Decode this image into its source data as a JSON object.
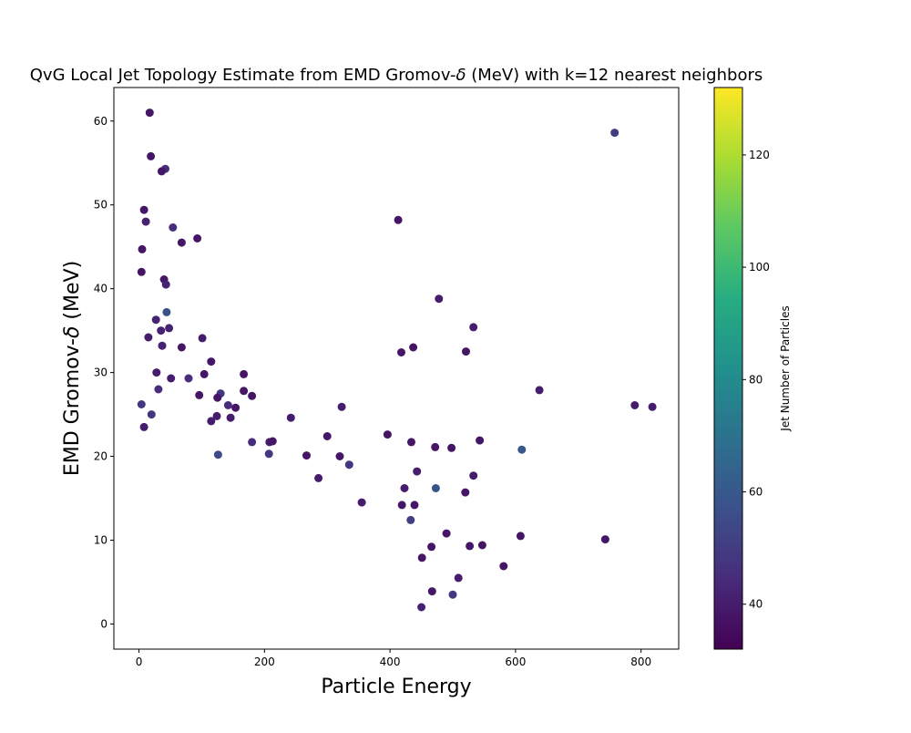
{
  "chart_data": {
    "type": "scatter",
    "title": "QvG Local Jet Topology Estimate from EMD Gromov-",
    "title_symbol": "δ",
    "title_tail": " (MeV) with k=12 nearest neighbors",
    "xlabel": "Particle Energy",
    "ylabel": "EMD Gromov-",
    "ylabel_symbol": "δ",
    "ylabel_tail": " (MeV)",
    "colorbar_label": "Jet Number of Particles",
    "xlim": [
      -40,
      860
    ],
    "ylim": [
      -3,
      64
    ],
    "xticks": [
      0,
      200,
      400,
      600,
      800
    ],
    "yticks": [
      0,
      10,
      20,
      30,
      40,
      50,
      60
    ],
    "cticks": [
      40,
      60,
      80,
      100,
      120
    ],
    "clim": [
      32,
      132
    ],
    "colormap": "viridis",
    "grid": false,
    "point_color_by": "Jet Number of Particles",
    "points": [
      [
        17,
        61.0,
        38
      ],
      [
        758,
        58.6,
        50
      ],
      [
        19,
        55.8,
        38
      ],
      [
        42,
        54.3,
        45
      ],
      [
        36,
        54.0,
        38
      ],
      [
        8,
        49.4,
        38
      ],
      [
        11,
        48.0,
        42
      ],
      [
        413,
        48.2,
        38
      ],
      [
        54,
        47.3,
        45
      ],
      [
        93,
        46.0,
        38
      ],
      [
        68,
        45.5,
        38
      ],
      [
        5,
        44.7,
        38
      ],
      [
        4,
        42.0,
        38
      ],
      [
        40,
        41.1,
        38
      ],
      [
        43,
        40.5,
        42
      ],
      [
        478,
        38.8,
        40
      ],
      [
        44,
        37.2,
        58
      ],
      [
        533,
        35.4,
        40
      ],
      [
        48,
        35.3,
        42
      ],
      [
        15,
        34.2,
        40
      ],
      [
        101,
        34.1,
        40
      ],
      [
        437,
        33.0,
        38
      ],
      [
        418,
        32.4,
        38
      ],
      [
        521,
        32.5,
        38
      ],
      [
        68,
        33.0,
        38
      ],
      [
        37,
        33.2,
        42
      ],
      [
        115,
        31.3,
        38
      ],
      [
        638,
        27.9,
        40
      ],
      [
        790,
        26.1,
        40
      ],
      [
        818,
        25.9,
        40
      ],
      [
        323,
        25.9,
        40
      ],
      [
        242,
        24.6,
        40
      ],
      [
        396,
        22.6,
        38
      ],
      [
        300,
        22.4,
        38
      ],
      [
        434,
        21.7,
        38
      ],
      [
        543,
        21.9,
        38
      ],
      [
        610,
        20.8,
        60
      ],
      [
        472,
        21.1,
        38
      ],
      [
        498,
        21.0,
        38
      ],
      [
        267,
        20.1,
        38
      ],
      [
        320,
        20.0,
        38
      ],
      [
        335,
        19.0,
        48
      ],
      [
        443,
        18.2,
        40
      ],
      [
        533,
        17.7,
        40
      ],
      [
        286,
        17.4,
        40
      ],
      [
        473,
        16.2,
        58
      ],
      [
        520,
        15.7,
        38
      ],
      [
        423,
        16.2,
        40
      ],
      [
        355,
        14.5,
        40
      ],
      [
        419,
        14.2,
        38
      ],
      [
        439,
        14.2,
        38
      ],
      [
        608,
        10.5,
        38
      ],
      [
        743,
        10.1,
        38
      ],
      [
        547,
        9.4,
        38
      ],
      [
        527,
        9.3,
        38
      ],
      [
        581,
        6.9,
        38
      ],
      [
        490,
        10.8,
        38
      ],
      [
        466,
        9.2,
        38
      ],
      [
        433,
        12.4,
        50
      ],
      [
        451,
        7.9,
        38
      ],
      [
        509,
        5.5,
        40
      ],
      [
        467,
        3.9,
        38
      ],
      [
        500,
        3.5,
        48
      ],
      [
        450,
        2.0,
        42
      ],
      [
        180,
        21.7,
        45
      ],
      [
        208,
        21.7,
        40
      ],
      [
        213,
        21.8,
        38
      ],
      [
        207,
        20.3,
        48
      ],
      [
        126,
        20.2,
        55
      ],
      [
        130,
        27.5,
        48
      ],
      [
        167,
        29.8,
        38
      ],
      [
        154,
        25.8,
        38
      ],
      [
        180,
        27.2,
        38
      ],
      [
        167,
        27.8,
        38
      ],
      [
        96,
        27.3,
        38
      ],
      [
        125,
        27.0,
        38
      ],
      [
        142,
        26.1,
        45
      ],
      [
        124,
        24.8,
        40
      ],
      [
        146,
        24.6,
        40
      ],
      [
        115,
        24.2,
        40
      ],
      [
        8,
        23.5,
        40
      ],
      [
        28,
        30.0,
        40
      ],
      [
        20,
        25.0,
        48
      ],
      [
        31,
        28.0,
        45
      ],
      [
        4,
        26.2,
        48
      ],
      [
        27,
        36.3,
        42
      ],
      [
        35,
        35.0,
        42
      ],
      [
        51,
        29.3,
        40
      ],
      [
        79,
        29.3,
        45
      ],
      [
        104,
        29.8,
        38
      ]
    ]
  }
}
